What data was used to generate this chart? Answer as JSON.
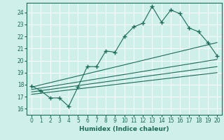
{
  "xlabel": "Humidex (Indice chaleur)",
  "xlim": [
    -0.5,
    20.5
  ],
  "ylim": [
    15.5,
    24.8
  ],
  "xticks": [
    0,
    1,
    2,
    3,
    4,
    5,
    6,
    7,
    8,
    9,
    10,
    11,
    12,
    13,
    14,
    15,
    16,
    17,
    18,
    19,
    20
  ],
  "yticks": [
    16,
    17,
    18,
    19,
    20,
    21,
    22,
    23,
    24
  ],
  "bg_color": "#cff0ea",
  "grid_color": "#ffffff",
  "line_color": "#1a6b5a",
  "line1_x": [
    0,
    1,
    2,
    3,
    4,
    5,
    6,
    7,
    8,
    9,
    10,
    11,
    12,
    13,
    14,
    15,
    16,
    17,
    18,
    19,
    20
  ],
  "line1_y": [
    17.9,
    17.5,
    16.9,
    16.9,
    16.2,
    17.8,
    19.5,
    19.5,
    20.8,
    20.7,
    22.0,
    22.8,
    23.1,
    24.5,
    23.2,
    24.2,
    23.9,
    22.7,
    22.4,
    21.5,
    20.4
  ],
  "line2_x": [
    0,
    20
  ],
  "line2_y": [
    17.8,
    21.5
  ],
  "line3_x": [
    0,
    20
  ],
  "line3_y": [
    17.6,
    20.1
  ],
  "line4_x": [
    0,
    20
  ],
  "line4_y": [
    17.4,
    19.5
  ],
  "line5_x": [
    0,
    20
  ],
  "line5_y": [
    17.2,
    19.0
  ]
}
